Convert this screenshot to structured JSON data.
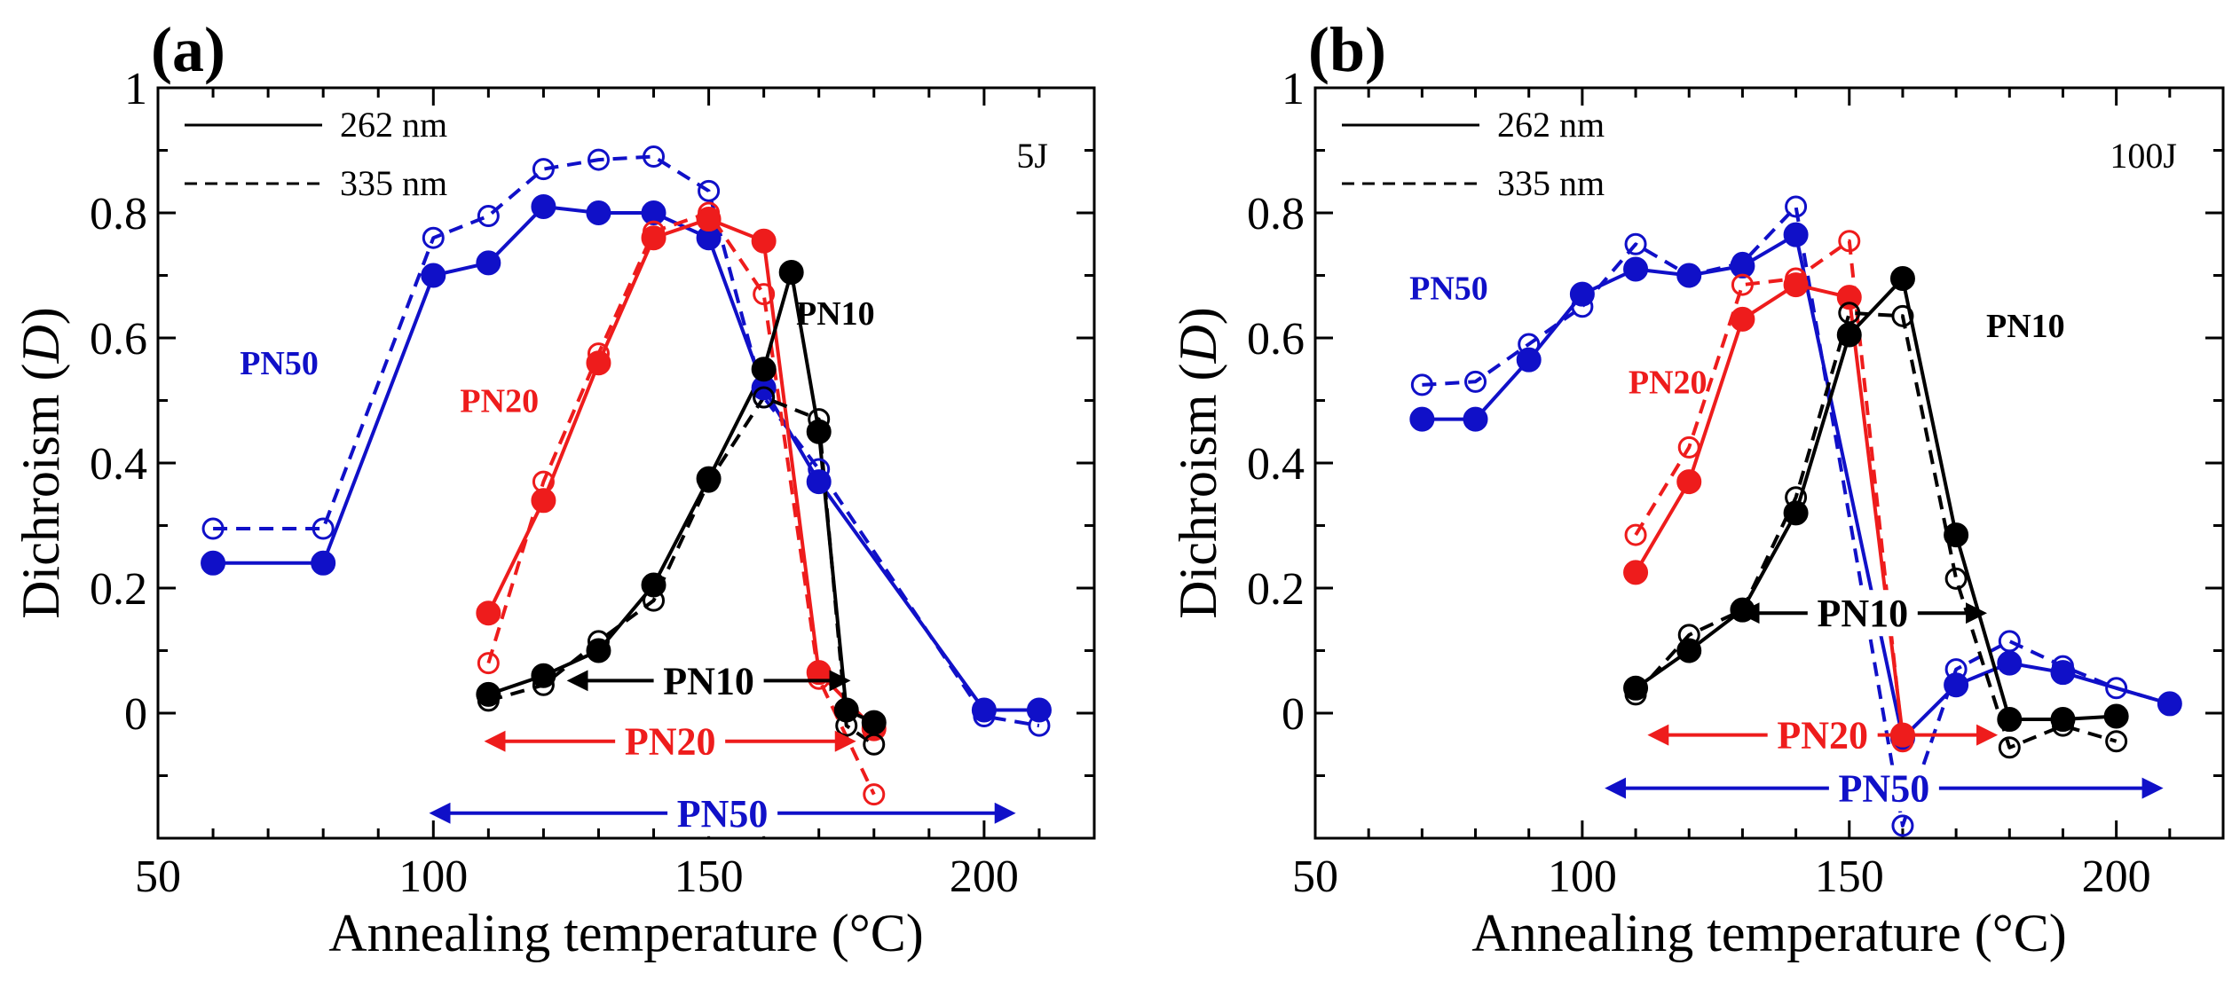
{
  "colors": {
    "PN50": "#1010c8",
    "PN20": "#ee1c1c",
    "PN10": "#000000"
  },
  "chart_data": [
    {
      "type": "line",
      "panel_label": "(a)",
      "condition": "5J",
      "xlabel": "Annealing temperature (°C)",
      "ylabel_prefix": "Dichroism (",
      "ylabel_var": "D",
      "ylabel_suffix": ")",
      "xlim": [
        50,
        220
      ],
      "ylim": [
        -0.2,
        1.0
      ],
      "xticks": [
        50,
        100,
        150,
        200
      ],
      "yticks": [
        0,
        0.2,
        0.4,
        0.6,
        0.8,
        1
      ],
      "ytick_labels": [
        "0",
        "0.2",
        "0.4",
        "0.6",
        "0.8",
        "1"
      ],
      "legend": {
        "placement": "top-left",
        "entries": [
          {
            "label": "262 nm",
            "style": "solid"
          },
          {
            "label": "335 nm",
            "style": "dashed"
          }
        ]
      },
      "series": [
        {
          "name": "PN50",
          "wavelength": "262 nm",
          "style": "solid",
          "marker": "filled",
          "x": [
            60,
            80,
            100,
            110,
            120,
            130,
            140,
            150,
            160,
            170,
            200,
            210
          ],
          "y": [
            0.24,
            0.24,
            0.7,
            0.72,
            0.81,
            0.8,
            0.8,
            0.76,
            0.52,
            0.37,
            0.005,
            0.005
          ]
        },
        {
          "name": "PN50",
          "wavelength": "335 nm",
          "style": "dashed",
          "marker": "open",
          "x": [
            60,
            80,
            100,
            110,
            120,
            130,
            140,
            150,
            160,
            170,
            200,
            210
          ],
          "y": [
            0.295,
            0.295,
            0.76,
            0.795,
            0.87,
            0.885,
            0.89,
            0.835,
            0.505,
            0.39,
            -0.005,
            -0.02
          ]
        },
        {
          "name": "PN20",
          "wavelength": "262 nm",
          "style": "solid",
          "marker": "filled",
          "x": [
            110,
            120,
            130,
            140,
            150,
            160,
            170,
            180
          ],
          "y": [
            0.16,
            0.34,
            0.56,
            0.76,
            0.79,
            0.755,
            0.065,
            -0.025
          ]
        },
        {
          "name": "PN20",
          "wavelength": "335 nm",
          "style": "dashed",
          "marker": "open",
          "x": [
            110,
            120,
            130,
            140,
            150,
            160,
            170,
            180
          ],
          "y": [
            0.08,
            0.37,
            0.575,
            0.77,
            0.8,
            0.67,
            0.055,
            -0.13
          ]
        },
        {
          "name": "PN10",
          "wavelength": "262 nm",
          "style": "solid",
          "marker": "filled",
          "x": [
            110,
            120,
            130,
            140,
            150,
            160,
            165,
            170,
            175,
            180
          ],
          "y": [
            0.03,
            0.06,
            0.1,
            0.205,
            0.375,
            0.55,
            0.705,
            0.45,
            0.005,
            -0.015
          ]
        },
        {
          "name": "PN10",
          "wavelength": "335 nm",
          "style": "dashed",
          "marker": "open",
          "x": [
            110,
            120,
            130,
            140,
            150,
            160,
            170,
            175,
            180
          ],
          "y": [
            0.02,
            0.045,
            0.115,
            0.18,
            0.37,
            0.505,
            0.47,
            -0.02,
            -0.05
          ]
        }
      ],
      "series_labels": [
        {
          "text": "PN50",
          "series": "PN50",
          "x": 72,
          "y": 0.56
        },
        {
          "text": "PN20",
          "series": "PN20",
          "x": 112,
          "y": 0.5
        },
        {
          "text": "PN10",
          "series": "PN10",
          "x": 173,
          "y": 0.64
        }
      ],
      "ranges": [
        {
          "label": "PN10",
          "series": "PN10",
          "from": 125,
          "to": 175,
          "y": 0.052
        },
        {
          "label": "PN20",
          "series": "PN20",
          "from": 110,
          "to": 176,
          "y": -0.045
        },
        {
          "label": "PN50",
          "series": "PN50",
          "from": 100,
          "to": 205,
          "y": -0.16
        }
      ]
    },
    {
      "type": "line",
      "panel_label": "(b)",
      "condition": "100J",
      "xlabel": "Annealing temperature (°C)",
      "ylabel_prefix": "Dichroism (",
      "ylabel_var": "D",
      "ylabel_suffix": ")",
      "xlim": [
        50,
        220
      ],
      "ylim": [
        -0.2,
        1.0
      ],
      "xticks": [
        50,
        100,
        150,
        200
      ],
      "yticks": [
        0,
        0.2,
        0.4,
        0.6,
        0.8,
        1
      ],
      "ytick_labels": [
        "0",
        "0.2",
        "0.4",
        "0.6",
        "0.8",
        "1"
      ],
      "legend": {
        "placement": "top-left",
        "entries": [
          {
            "label": "262 nm",
            "style": "solid"
          },
          {
            "label": "335 nm",
            "style": "dashed"
          }
        ]
      },
      "series": [
        {
          "name": "PN50",
          "wavelength": "262 nm",
          "style": "solid",
          "marker": "filled",
          "x": [
            70,
            80,
            90,
            100,
            110,
            120,
            130,
            140,
            160,
            170,
            180,
            190,
            210
          ],
          "y": [
            0.47,
            0.47,
            0.565,
            0.67,
            0.71,
            0.7,
            0.715,
            0.765,
            -0.04,
            0.045,
            0.08,
            0.065,
            0.015
          ]
        },
        {
          "name": "PN50",
          "wavelength": "335 nm",
          "style": "dashed",
          "marker": "open",
          "x": [
            70,
            80,
            90,
            100,
            110,
            120,
            130,
            140,
            160,
            170,
            180,
            190,
            200,
            210
          ],
          "y": [
            0.525,
            0.53,
            0.59,
            0.65,
            0.75,
            0.7,
            0.72,
            0.81,
            -0.18,
            0.07,
            0.115,
            0.075,
            0.04,
            0.015
          ]
        },
        {
          "name": "PN20",
          "wavelength": "262 nm",
          "style": "solid",
          "marker": "filled",
          "x": [
            110,
            120,
            130,
            140,
            150,
            160
          ],
          "y": [
            0.225,
            0.37,
            0.63,
            0.685,
            0.665,
            -0.035
          ]
        },
        {
          "name": "PN20",
          "wavelength": "335 nm",
          "style": "dashed",
          "marker": "open",
          "x": [
            110,
            120,
            130,
            140,
            150,
            160
          ],
          "y": [
            0.285,
            0.425,
            0.685,
            0.695,
            0.755,
            -0.045
          ]
        },
        {
          "name": "PN10",
          "wavelength": "262 nm",
          "style": "solid",
          "marker": "filled",
          "x": [
            110,
            120,
            130,
            140,
            150,
            160,
            170,
            180,
            190,
            200
          ],
          "y": [
            0.04,
            0.1,
            0.165,
            0.32,
            0.605,
            0.695,
            0.285,
            -0.01,
            -0.01,
            -0.005
          ]
        },
        {
          "name": "PN10",
          "wavelength": "335 nm",
          "style": "dashed",
          "marker": "open",
          "x": [
            110,
            120,
            130,
            140,
            150,
            160,
            170,
            180,
            190,
            200
          ],
          "y": [
            0.03,
            0.125,
            0.165,
            0.345,
            0.64,
            0.635,
            0.215,
            -0.055,
            -0.02,
            -0.045
          ]
        }
      ],
      "series_labels": [
        {
          "text": "PN50",
          "series": "PN50",
          "x": 75,
          "y": 0.68
        },
        {
          "text": "PN20",
          "series": "PN20",
          "x": 116,
          "y": 0.53
        },
        {
          "text": "PN10",
          "series": "PN10",
          "x": 183,
          "y": 0.62
        }
      ],
      "ranges": [
        {
          "label": "PN10",
          "series": "PN10",
          "from": 130,
          "to": 175,
          "y": 0.16
        },
        {
          "label": "PN20",
          "series": "PN20",
          "from": 113,
          "to": 177,
          "y": -0.035
        },
        {
          "label": "PN50",
          "series": "PN50",
          "from": 105,
          "to": 208,
          "y": -0.12
        }
      ]
    }
  ]
}
